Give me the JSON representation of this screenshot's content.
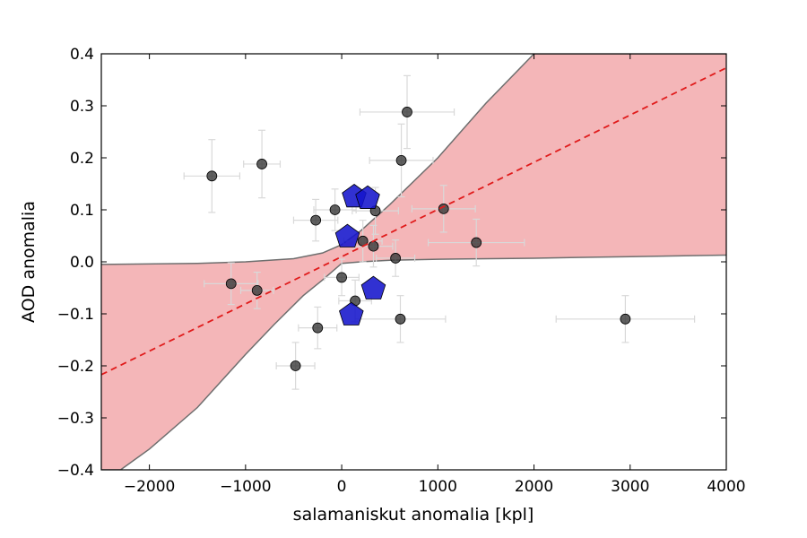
{
  "chart_data": {
    "type": "scatter",
    "title": "",
    "xlabel": "salamaniskut anomalia [kpl]",
    "ylabel": "AOD anomalia",
    "xlim": [
      -2500,
      4000
    ],
    "ylim": [
      -0.4,
      0.4
    ],
    "xticks": [
      -2000,
      -1000,
      0,
      1000,
      2000,
      3000,
      4000
    ],
    "xtick_labels": [
      "−2000",
      "−1000",
      "0",
      "1000",
      "2000",
      "3000",
      "4000"
    ],
    "yticks": [
      -0.4,
      -0.3,
      -0.2,
      -0.1,
      0.0,
      0.1,
      0.2,
      0.3,
      0.4
    ],
    "ytick_labels": [
      "−0.4",
      "−0.3",
      "−0.2",
      "−0.1",
      "0.0",
      "0.1",
      "0.2",
      "0.3",
      "0.4"
    ],
    "grid": false,
    "legend": "none",
    "colors": {
      "points": "#333333",
      "pentagons": "#1515cc",
      "fit_line": "#e01b1b",
      "band_fill": "#f4b6b8",
      "band_edge": "#6e6e6e",
      "errorbars": "#d9d9d9"
    },
    "fit_line": {
      "style": "dashed",
      "points": [
        [
          -2500,
          -0.217
        ],
        [
          4000,
          0.373
        ]
      ]
    },
    "confidence_band": {
      "upper": [
        [
          -2500,
          -0.005
        ],
        [
          -1500,
          -0.003
        ],
        [
          -1000,
          0.0
        ],
        [
          -500,
          0.006
        ],
        [
          -200,
          0.017
        ],
        [
          0,
          0.033
        ],
        [
          200,
          0.06
        ],
        [
          500,
          0.11
        ],
        [
          1000,
          0.2
        ],
        [
          1500,
          0.305
        ],
        [
          2000,
          0.4
        ],
        [
          4000,
          0.4
        ]
      ],
      "lower": [
        [
          -2500,
          -0.4
        ],
        [
          -2300,
          -0.4
        ],
        [
          -2000,
          -0.36
        ],
        [
          -1500,
          -0.28
        ],
        [
          -1000,
          -0.178
        ],
        [
          -700,
          -0.12
        ],
        [
          -400,
          -0.065
        ],
        [
          -200,
          -0.035
        ],
        [
          0,
          -0.003
        ],
        [
          200,
          0.0
        ],
        [
          500,
          0.003
        ],
        [
          1000,
          0.005
        ],
        [
          2000,
          0.007
        ],
        [
          3000,
          0.01
        ],
        [
          4000,
          0.013
        ]
      ]
    },
    "points": [
      {
        "x": -1350,
        "y": 0.165,
        "xerr": 290,
        "yerr": 0.07
      },
      {
        "x": -830,
        "y": 0.188,
        "xerr": 190,
        "yerr": 0.065
      },
      {
        "x": -1150,
        "y": -0.042,
        "xerr": 280,
        "yerr": 0.04
      },
      {
        "x": -880,
        "y": -0.055,
        "xerr": 170,
        "yerr": 0.035
      },
      {
        "x": -270,
        "y": 0.08,
        "xerr": 230,
        "yerr": 0.04
      },
      {
        "x": -70,
        "y": 0.1,
        "xerr": 220,
        "yerr": 0.04
      },
      {
        "x": 0,
        "y": -0.03,
        "xerr": 180,
        "yerr": 0.035
      },
      {
        "x": 140,
        "y": -0.075,
        "xerr": 170,
        "yerr": 0.04
      },
      {
        "x": -250,
        "y": -0.127,
        "xerr": 200,
        "yerr": 0.04
      },
      {
        "x": -480,
        "y": -0.2,
        "xerr": 200,
        "yerr": 0.045
      },
      {
        "x": 220,
        "y": 0.04,
        "xerr": 200,
        "yerr": 0.04
      },
      {
        "x": 330,
        "y": 0.03,
        "xerr": 200,
        "yerr": 0.04
      },
      {
        "x": 350,
        "y": 0.098,
        "xerr": 240,
        "yerr": 0.045
      },
      {
        "x": 560,
        "y": 0.007,
        "xerr": 200,
        "yerr": 0.035
      },
      {
        "x": 620,
        "y": 0.195,
        "xerr": 330,
        "yerr": 0.07
      },
      {
        "x": 680,
        "y": 0.288,
        "xerr": 490,
        "yerr": 0.07
      },
      {
        "x": 610,
        "y": -0.11,
        "xerr": 470,
        "yerr": 0.045
      },
      {
        "x": 1060,
        "y": 0.102,
        "xerr": 330,
        "yerr": 0.045
      },
      {
        "x": 1400,
        "y": 0.037,
        "xerr": 500,
        "yerr": 0.045
      },
      {
        "x": 2950,
        "y": -0.11,
        "xerr": 720,
        "yerr": 0.045
      }
    ],
    "pentagons": [
      {
        "x": 130,
        "y": 0.125
      },
      {
        "x": 270,
        "y": 0.122
      },
      {
        "x": 60,
        "y": 0.048
      },
      {
        "x": 330,
        "y": -0.052
      },
      {
        "x": 100,
        "y": -0.102
      }
    ]
  }
}
